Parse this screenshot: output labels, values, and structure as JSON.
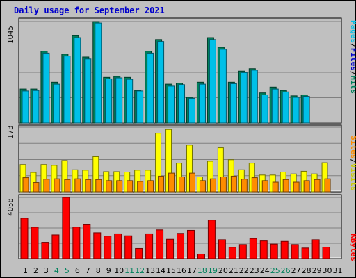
{
  "chart_data": {
    "title": "Daily usage for September 2021",
    "type": "bar",
    "days": [
      "1",
      "2",
      "3",
      "4",
      "5",
      "6",
      "7",
      "8",
      "9",
      "10",
      "11",
      "12",
      "13",
      "14",
      "15",
      "16",
      "17",
      "18",
      "19",
      "20",
      "21",
      "22",
      "23",
      "24",
      "25",
      "26",
      "27",
      "28",
      "29",
      "30",
      "31"
    ],
    "weekend_days": [
      "4",
      "5",
      "11",
      "12",
      "18",
      "19",
      "25",
      "26"
    ],
    "panels": [
      {
        "name": "hits-files-pages",
        "ymax_label": "1045",
        "ymax": 1045,
        "legend": {
          "pages": "Pages",
          "files": "Files",
          "hits": "Hits",
          "separator": "/"
        },
        "series": [
          {
            "name": "Hits",
            "color": "#00805c",
            "values": [
              350,
              350,
              740,
              420,
              710,
              900,
              680,
              1045,
              470,
              480,
              470,
              335,
              740,
              860,
              400,
              410,
              265,
              420,
              880,
              780,
              420,
              535,
              560,
              310,
              370,
              335,
              280,
              290,
              0,
              0,
              0
            ]
          },
          {
            "name": "Files",
            "color": "#00c0e8",
            "values": [
              330,
              335,
              720,
              400,
              690,
              880,
              660,
              1030,
              455,
              465,
              450,
              330,
              720,
              840,
              380,
              395,
              255,
              400,
              860,
              760,
              405,
              520,
              545,
              290,
              350,
              320,
              265,
              275,
              0,
              0,
              0
            ]
          },
          {
            "name": "Pages",
            "color": "#0000cc",
            "values": [
              0,
              0,
              0,
              0,
              0,
              0,
              0,
              0,
              0,
              0,
              0,
              0,
              0,
              0,
              0,
              0,
              0,
              0,
              0,
              0,
              0,
              0,
              0,
              0,
              0,
              0,
              0,
              0,
              0,
              0,
              0
            ]
          }
        ]
      },
      {
        "name": "visits-sites",
        "ymax_label": "173",
        "ymax": 173,
        "legend": {
          "sites": "Sites",
          "visits": "Visits",
          "separator": "/"
        },
        "series": [
          {
            "name": "Visits",
            "color": "#ffff00",
            "values": [
              73,
              52,
              73,
              71,
              84,
              59,
              58,
              94,
              54,
              54,
              53,
              58,
              58,
              157,
              167,
              77,
              125,
              40,
              82,
              118,
              86,
              59,
              77,
              45,
              45,
              53,
              48,
              55,
              48,
              78,
              0
            ]
          },
          {
            "name": "Sites",
            "color": "#ff8c00",
            "values": [
              38,
              25,
              34,
              35,
              33,
              35,
              33,
              33,
              30,
              30,
              30,
              28,
              30,
              42,
              50,
              40,
              50,
              30,
              35,
              40,
              42,
              34,
              38,
              30,
              26,
              33,
              26,
              30,
              33,
              35,
              0
            ]
          }
        ]
      },
      {
        "name": "kbytes",
        "ymax_label": "4058",
        "ymax": 4058,
        "legend": {
          "kbytes": "KBytes"
        },
        "series": [
          {
            "name": "KBytes",
            "color": "#ff0000",
            "values": [
              2680,
              2080,
              1080,
              1570,
              4058,
              2090,
              2240,
              1710,
              1490,
              1640,
              1510,
              670,
              1640,
              1900,
              1280,
              1670,
              1870,
              300,
              2550,
              1250,
              750,
              930,
              1330,
              1170,
              960,
              1140,
              930,
              700,
              1250,
              760,
              0
            ]
          }
        ]
      }
    ]
  }
}
